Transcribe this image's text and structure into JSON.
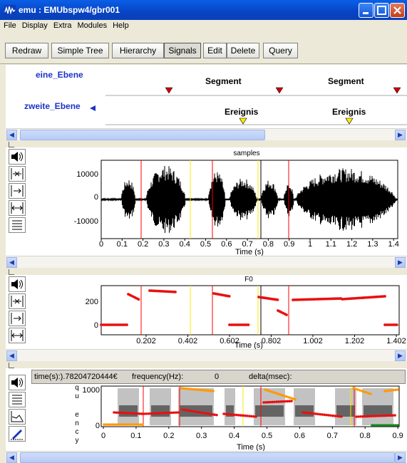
{
  "window": {
    "title": "emu : EMUbspw4/gbr001"
  },
  "menu": [
    "File",
    "Display",
    "Extra",
    "Modules",
    "Help"
  ],
  "toolbar": {
    "redraw": "Redraw",
    "simple_tree": "Simple Tree",
    "hierarchy": "Hierarchy",
    "signals": "Signals",
    "edit": "Edit",
    "delete": "Delete",
    "query": "Query"
  },
  "hierarchy": {
    "tiers": [
      {
        "name": "eine_Ebene",
        "items": [
          "Segment",
          "Segment"
        ]
      },
      {
        "name": "zweite_Ebene",
        "items": [
          "Ereignis",
          "Ereignis"
        ]
      }
    ],
    "colors": {
      "tier_name": "#1a33c7",
      "segment_marker": "#cc0000",
      "event_marker": "#ffee00"
    }
  },
  "waveform": {
    "title": "samples",
    "y_ticks": [
      "10000",
      "0",
      "-10000"
    ],
    "x_ticks": [
      "0",
      "0.1",
      "0.2",
      "0.3",
      "0.4",
      "0.5",
      "0.6",
      "0.7",
      "0.8",
      "0.9",
      "1",
      "1.1",
      "1.2",
      "1.3",
      "1.4"
    ],
    "xlabel": "Time (s)"
  },
  "f0": {
    "title": "F0",
    "y_ticks": [
      "200",
      "0"
    ],
    "x_ticks": [
      "0.202",
      "0.402",
      "0.602",
      "0.802",
      "1.002",
      "1.202",
      "1.402"
    ],
    "xlabel": "Time (s)"
  },
  "spectrogram": {
    "info": {
      "time": "time(s):).78204720444€",
      "frequency": "frequency(Hz):",
      "frequency_value": "0",
      "delta": "delta(msec):"
    },
    "ylabel": [
      "q",
      "u",
      "e",
      "n",
      "c",
      "y"
    ],
    "y_ticks": [
      "1000",
      "0"
    ],
    "x_ticks": [
      "0",
      "0.1",
      "0.2",
      "0.3",
      "0.4",
      "0.5",
      "0.6",
      "0.7",
      "0.8",
      "0.9"
    ],
    "xlabel": "Time (s)"
  },
  "icons": {
    "waveform_tools": [
      "speaker-icon",
      "zoom-in-icon",
      "zoom-out-icon",
      "fit-width-icon",
      "list-icon"
    ],
    "f0_tools": [
      "speaker-icon",
      "zoom-in-icon",
      "zoom-out-icon",
      "fit-width-icon"
    ],
    "spectrogram_tools": [
      "speaker-icon",
      "list-icon",
      "graph-icon",
      "pen-icon"
    ]
  }
}
